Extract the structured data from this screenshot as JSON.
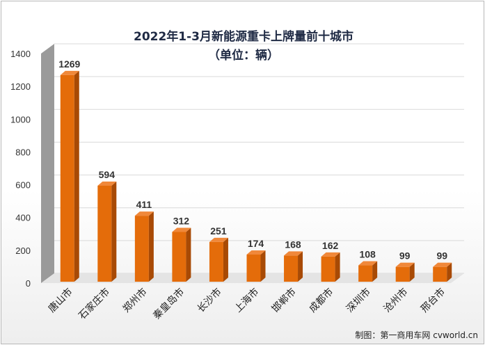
{
  "chart_data": {
    "type": "bar",
    "title": "2022年1-3月新能源重卡上牌量前十城市",
    "subtitle": "（单位：辆）",
    "categories": [
      "唐山市",
      "石家庄市",
      "郑州市",
      "秦皇岛市",
      "长沙市",
      "上海市",
      "邯郸市",
      "成都市",
      "深圳市",
      "沧州市",
      "邢台市"
    ],
    "values": [
      1269,
      594,
      411,
      312,
      251,
      174,
      168,
      162,
      108,
      99,
      99
    ],
    "data_labels": [
      "1269",
      "594",
      "411",
      "312",
      "251",
      "174",
      "168",
      "162",
      "108",
      "99",
      "99"
    ],
    "yticks": [
      "0",
      "200",
      "400",
      "600",
      "800",
      "1000",
      "1200",
      "1400"
    ],
    "ylim": [
      0,
      1400
    ],
    "xlabel": "",
    "ylabel": "",
    "grid": true,
    "legend": "none",
    "bar_color": "#E46C0A",
    "bar_side_color": "#A84A05",
    "bar_top_color": "#F0883A",
    "wall_color": "#9a9a9a"
  },
  "watermark": "制图：第一商用车网 cvworld.cn"
}
